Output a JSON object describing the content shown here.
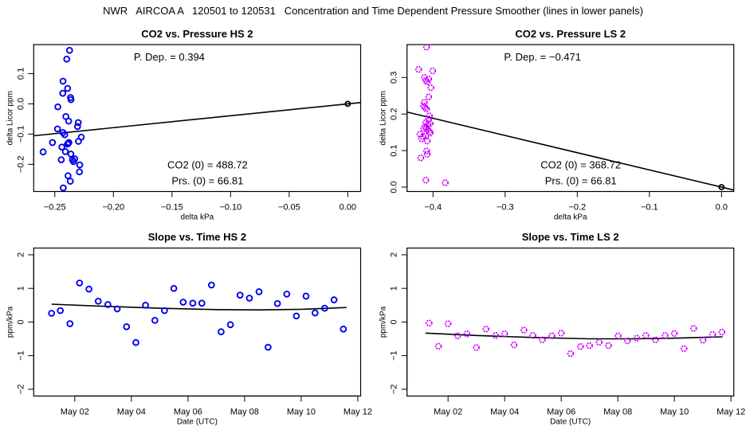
{
  "title": "NWR   AIRCOA A   120501 to 120531   Concentration and Time Dependent Pressure Smoother (lines in lower panels)",
  "colors": {
    "hs_points": "#0000ee",
    "ls_points_outer": "#cc00ff",
    "ls_points_inner": "#3300ff",
    "line": "#000000"
  },
  "chart_data": [
    {
      "id": "co2-vs-pressure-hs",
      "type": "scatter",
      "title": "CO2 vs. Pressure HS 2",
      "xlabel": "delta kPa",
      "ylabel": "delta Licor ppm",
      "xlim": [
        -0.268,
        0.011
      ],
      "ylim": [
        -0.29,
        0.196
      ],
      "xticks": [
        -0.25,
        -0.2,
        -0.15,
        -0.1,
        -0.05,
        0.0
      ],
      "xtick_labels": [
        "−0.25",
        "−0.20",
        "−0.15",
        "−0.10",
        "−0.05",
        "0.00"
      ],
      "yticks": [
        -0.2,
        -0.1,
        0.0,
        0.1
      ],
      "ytick_labels": [
        "−0.2",
        "−0.1",
        "0.0",
        "0.1"
      ],
      "annotations": {
        "p_dep": "P. Dep. =  0.394",
        "co2_0": "CO2 (0) =  488.72",
        "prs_0": "Prs. (0) =  66.81"
      },
      "fit_line": {
        "slope": 0.394,
        "intercept": 0.0
      },
      "reference_point": [
        0.0,
        0.0
      ],
      "points": [
        [
          -0.2374,
          0.177
        ],
        [
          -0.2398,
          0.148
        ],
        [
          -0.243,
          0.075
        ],
        [
          -0.2391,
          0.051
        ],
        [
          -0.2432,
          0.035
        ],
        [
          -0.2366,
          0.021
        ],
        [
          -0.2362,
          0.014
        ],
        [
          -0.2474,
          -0.01
        ],
        [
          -0.2406,
          -0.042
        ],
        [
          -0.2382,
          -0.057
        ],
        [
          -0.23,
          -0.062
        ],
        [
          -0.2306,
          -0.075
        ],
        [
          -0.2477,
          -0.083
        ],
        [
          -0.243,
          -0.095
        ],
        [
          -0.2415,
          -0.102
        ],
        [
          -0.2274,
          -0.11
        ],
        [
          -0.2298,
          -0.124
        ],
        [
          -0.252,
          -0.128
        ],
        [
          -0.2386,
          -0.131
        ],
        [
          -0.2392,
          -0.133
        ],
        [
          -0.244,
          -0.143
        ],
        [
          -0.241,
          -0.158
        ],
        [
          -0.2363,
          -0.166
        ],
        [
          -0.233,
          -0.182
        ],
        [
          -0.234,
          -0.191
        ],
        [
          -0.26,
          -0.159
        ],
        [
          -0.2445,
          -0.185
        ],
        [
          -0.2287,
          -0.202
        ],
        [
          -0.229,
          -0.225
        ],
        [
          -0.2387,
          -0.238
        ],
        [
          -0.2368,
          -0.256
        ],
        [
          -0.2428,
          -0.278
        ],
        [
          -0.238,
          -0.128
        ],
        [
          -0.235,
          -0.185
        ]
      ]
    },
    {
      "id": "co2-vs-pressure-ls",
      "type": "scatter",
      "title": "CO2 vs. Pressure LS 2",
      "xlabel": "delta kPa",
      "ylabel": "delta Licor ppm",
      "xlim": [
        -0.436,
        0.017
      ],
      "ylim": [
        -0.012,
        0.39
      ],
      "xticks": [
        -0.4,
        -0.3,
        -0.2,
        -0.1,
        0.0
      ],
      "xtick_labels": [
        "−0.4",
        "−0.3",
        "−0.2",
        "−0.1",
        "0.0"
      ],
      "yticks": [
        0.0,
        0.1,
        0.2,
        0.3
      ],
      "ytick_labels": [
        "0.0",
        "0.1",
        "0.2",
        "0.3"
      ],
      "annotations": {
        "p_dep": "P. Dep. =  −0.471",
        "co2_0": "CO2 (0) =  368.72",
        "prs_0": "Prs. (0) =  66.81"
      },
      "fit_line": {
        "slope": -0.471,
        "intercept": 0.0
      },
      "reference_point": [
        0.0,
        0.0
      ],
      "points": [
        [
          -0.409,
          0.383
        ],
        [
          -0.42,
          0.322
        ],
        [
          -0.4005,
          0.318
        ],
        [
          -0.412,
          0.3
        ],
        [
          -0.41,
          0.292
        ],
        [
          -0.406,
          0.296
        ],
        [
          -0.408,
          0.288
        ],
        [
          -0.403,
          0.272
        ],
        [
          -0.406,
          0.247
        ],
        [
          -0.412,
          0.232
        ],
        [
          -0.413,
          0.222
        ],
        [
          -0.411,
          0.218
        ],
        [
          -0.409,
          0.214
        ],
        [
          -0.405,
          0.195
        ],
        [
          -0.406,
          0.187
        ],
        [
          -0.41,
          0.177
        ],
        [
          -0.407,
          0.172
        ],
        [
          -0.404,
          0.174
        ],
        [
          -0.411,
          0.165
        ],
        [
          -0.409,
          0.162
        ],
        [
          -0.413,
          0.16
        ],
        [
          -0.407,
          0.157
        ],
        [
          -0.405,
          0.152
        ],
        [
          -0.418,
          0.145
        ],
        [
          -0.414,
          0.138
        ],
        [
          -0.41,
          0.14
        ],
        [
          -0.416,
          0.132
        ],
        [
          -0.408,
          0.126
        ],
        [
          -0.409,
          0.099
        ],
        [
          -0.408,
          0.09
        ],
        [
          -0.417,
          0.08
        ],
        [
          -0.41,
          0.019
        ],
        [
          -0.383,
          0.012
        ],
        [
          -0.404,
          0.148
        ]
      ]
    },
    {
      "id": "slope-vs-time-hs",
      "type": "scatter",
      "title": "Slope vs. Time HS 2",
      "xlabel": "Date (UTC)",
      "ylabel": "ppm/kPa",
      "xlim": [
        0.55,
        12.1
      ],
      "ylim": [
        -2.2,
        2.2
      ],
      "xticks": [
        2,
        4,
        6,
        8,
        10,
        12
      ],
      "xtick_labels": [
        "May 02",
        "May 04",
        "May 06",
        "May 08",
        "May 10",
        "May 12"
      ],
      "yticks": [
        -2,
        -1,
        0,
        1,
        2
      ],
      "ytick_labels": [
        "−2",
        "−1",
        "0",
        "1",
        "2"
      ],
      "points": [
        [
          1.18,
          0.26
        ],
        [
          1.49,
          0.34
        ],
        [
          1.83,
          -0.05
        ],
        [
          2.17,
          1.16
        ],
        [
          2.5,
          0.98
        ],
        [
          2.83,
          0.62
        ],
        [
          3.17,
          0.52
        ],
        [
          3.5,
          0.39
        ],
        [
          3.83,
          -0.14
        ],
        [
          4.16,
          -0.61
        ],
        [
          4.5,
          0.5
        ],
        [
          4.83,
          0.05
        ],
        [
          5.17,
          0.34
        ],
        [
          5.5,
          1.0
        ],
        [
          5.83,
          0.59
        ],
        [
          6.17,
          0.56
        ],
        [
          6.49,
          0.56
        ],
        [
          6.83,
          1.1
        ],
        [
          7.17,
          -0.29
        ],
        [
          7.5,
          -0.08
        ],
        [
          7.84,
          0.8
        ],
        [
          8.17,
          0.71
        ],
        [
          8.51,
          0.9
        ],
        [
          8.83,
          -0.75
        ],
        [
          9.16,
          0.55
        ],
        [
          9.49,
          0.83
        ],
        [
          9.83,
          0.18
        ],
        [
          10.17,
          0.77
        ],
        [
          10.49,
          0.27
        ],
        [
          10.83,
          0.41
        ],
        [
          11.16,
          0.66
        ],
        [
          11.49,
          -0.21
        ]
      ],
      "smoother": [
        [
          1.18,
          0.53
        ],
        [
          3.0,
          0.47
        ],
        [
          5.0,
          0.41
        ],
        [
          7.0,
          0.37
        ],
        [
          8.5,
          0.36
        ],
        [
          10.0,
          0.38
        ],
        [
          11.6,
          0.43
        ]
      ]
    },
    {
      "id": "slope-vs-time-ls",
      "type": "scatter",
      "title": "Slope vs. Time LS 2",
      "xlabel": "Date (UTC)",
      "ylabel": "ppm/kPa",
      "xlim": [
        0.55,
        12.1
      ],
      "ylim": [
        -2.2,
        2.2
      ],
      "xticks": [
        2,
        4,
        6,
        8,
        10,
        12
      ],
      "xtick_labels": [
        "May 02",
        "May 04",
        "May 06",
        "May 08",
        "May 10",
        "May 12"
      ],
      "yticks": [
        -2,
        -1,
        0,
        1,
        2
      ],
      "ytick_labels": [
        "−2",
        "−1",
        "0",
        "1",
        "2"
      ],
      "points": [
        [
          1.33,
          -0.03
        ],
        [
          1.66,
          -0.72
        ],
        [
          2.0,
          -0.05
        ],
        [
          2.34,
          -0.41
        ],
        [
          2.67,
          -0.35
        ],
        [
          3.0,
          -0.76
        ],
        [
          3.34,
          -0.21
        ],
        [
          3.68,
          -0.4
        ],
        [
          4.0,
          -0.35
        ],
        [
          4.33,
          -0.68
        ],
        [
          4.68,
          -0.24
        ],
        [
          5.0,
          -0.4
        ],
        [
          5.33,
          -0.53
        ],
        [
          5.67,
          -0.41
        ],
        [
          6.0,
          -0.33
        ],
        [
          6.33,
          -0.94
        ],
        [
          6.68,
          -0.73
        ],
        [
          7.0,
          -0.7
        ],
        [
          7.34,
          -0.6
        ],
        [
          7.67,
          -0.7
        ],
        [
          8.01,
          -0.41
        ],
        [
          8.34,
          -0.56
        ],
        [
          8.67,
          -0.48
        ],
        [
          8.99,
          -0.4
        ],
        [
          9.33,
          -0.53
        ],
        [
          9.67,
          -0.4
        ],
        [
          10.0,
          -0.34
        ],
        [
          10.34,
          -0.79
        ],
        [
          10.68,
          -0.19
        ],
        [
          11.01,
          -0.54
        ],
        [
          11.35,
          -0.37
        ],
        [
          11.68,
          -0.3
        ]
      ],
      "smoother": [
        [
          1.2,
          -0.33
        ],
        [
          3.0,
          -0.4
        ],
        [
          5.0,
          -0.46
        ],
        [
          7.0,
          -0.5
        ],
        [
          8.5,
          -0.5
        ],
        [
          10.0,
          -0.48
        ],
        [
          11.7,
          -0.44
        ]
      ]
    }
  ]
}
